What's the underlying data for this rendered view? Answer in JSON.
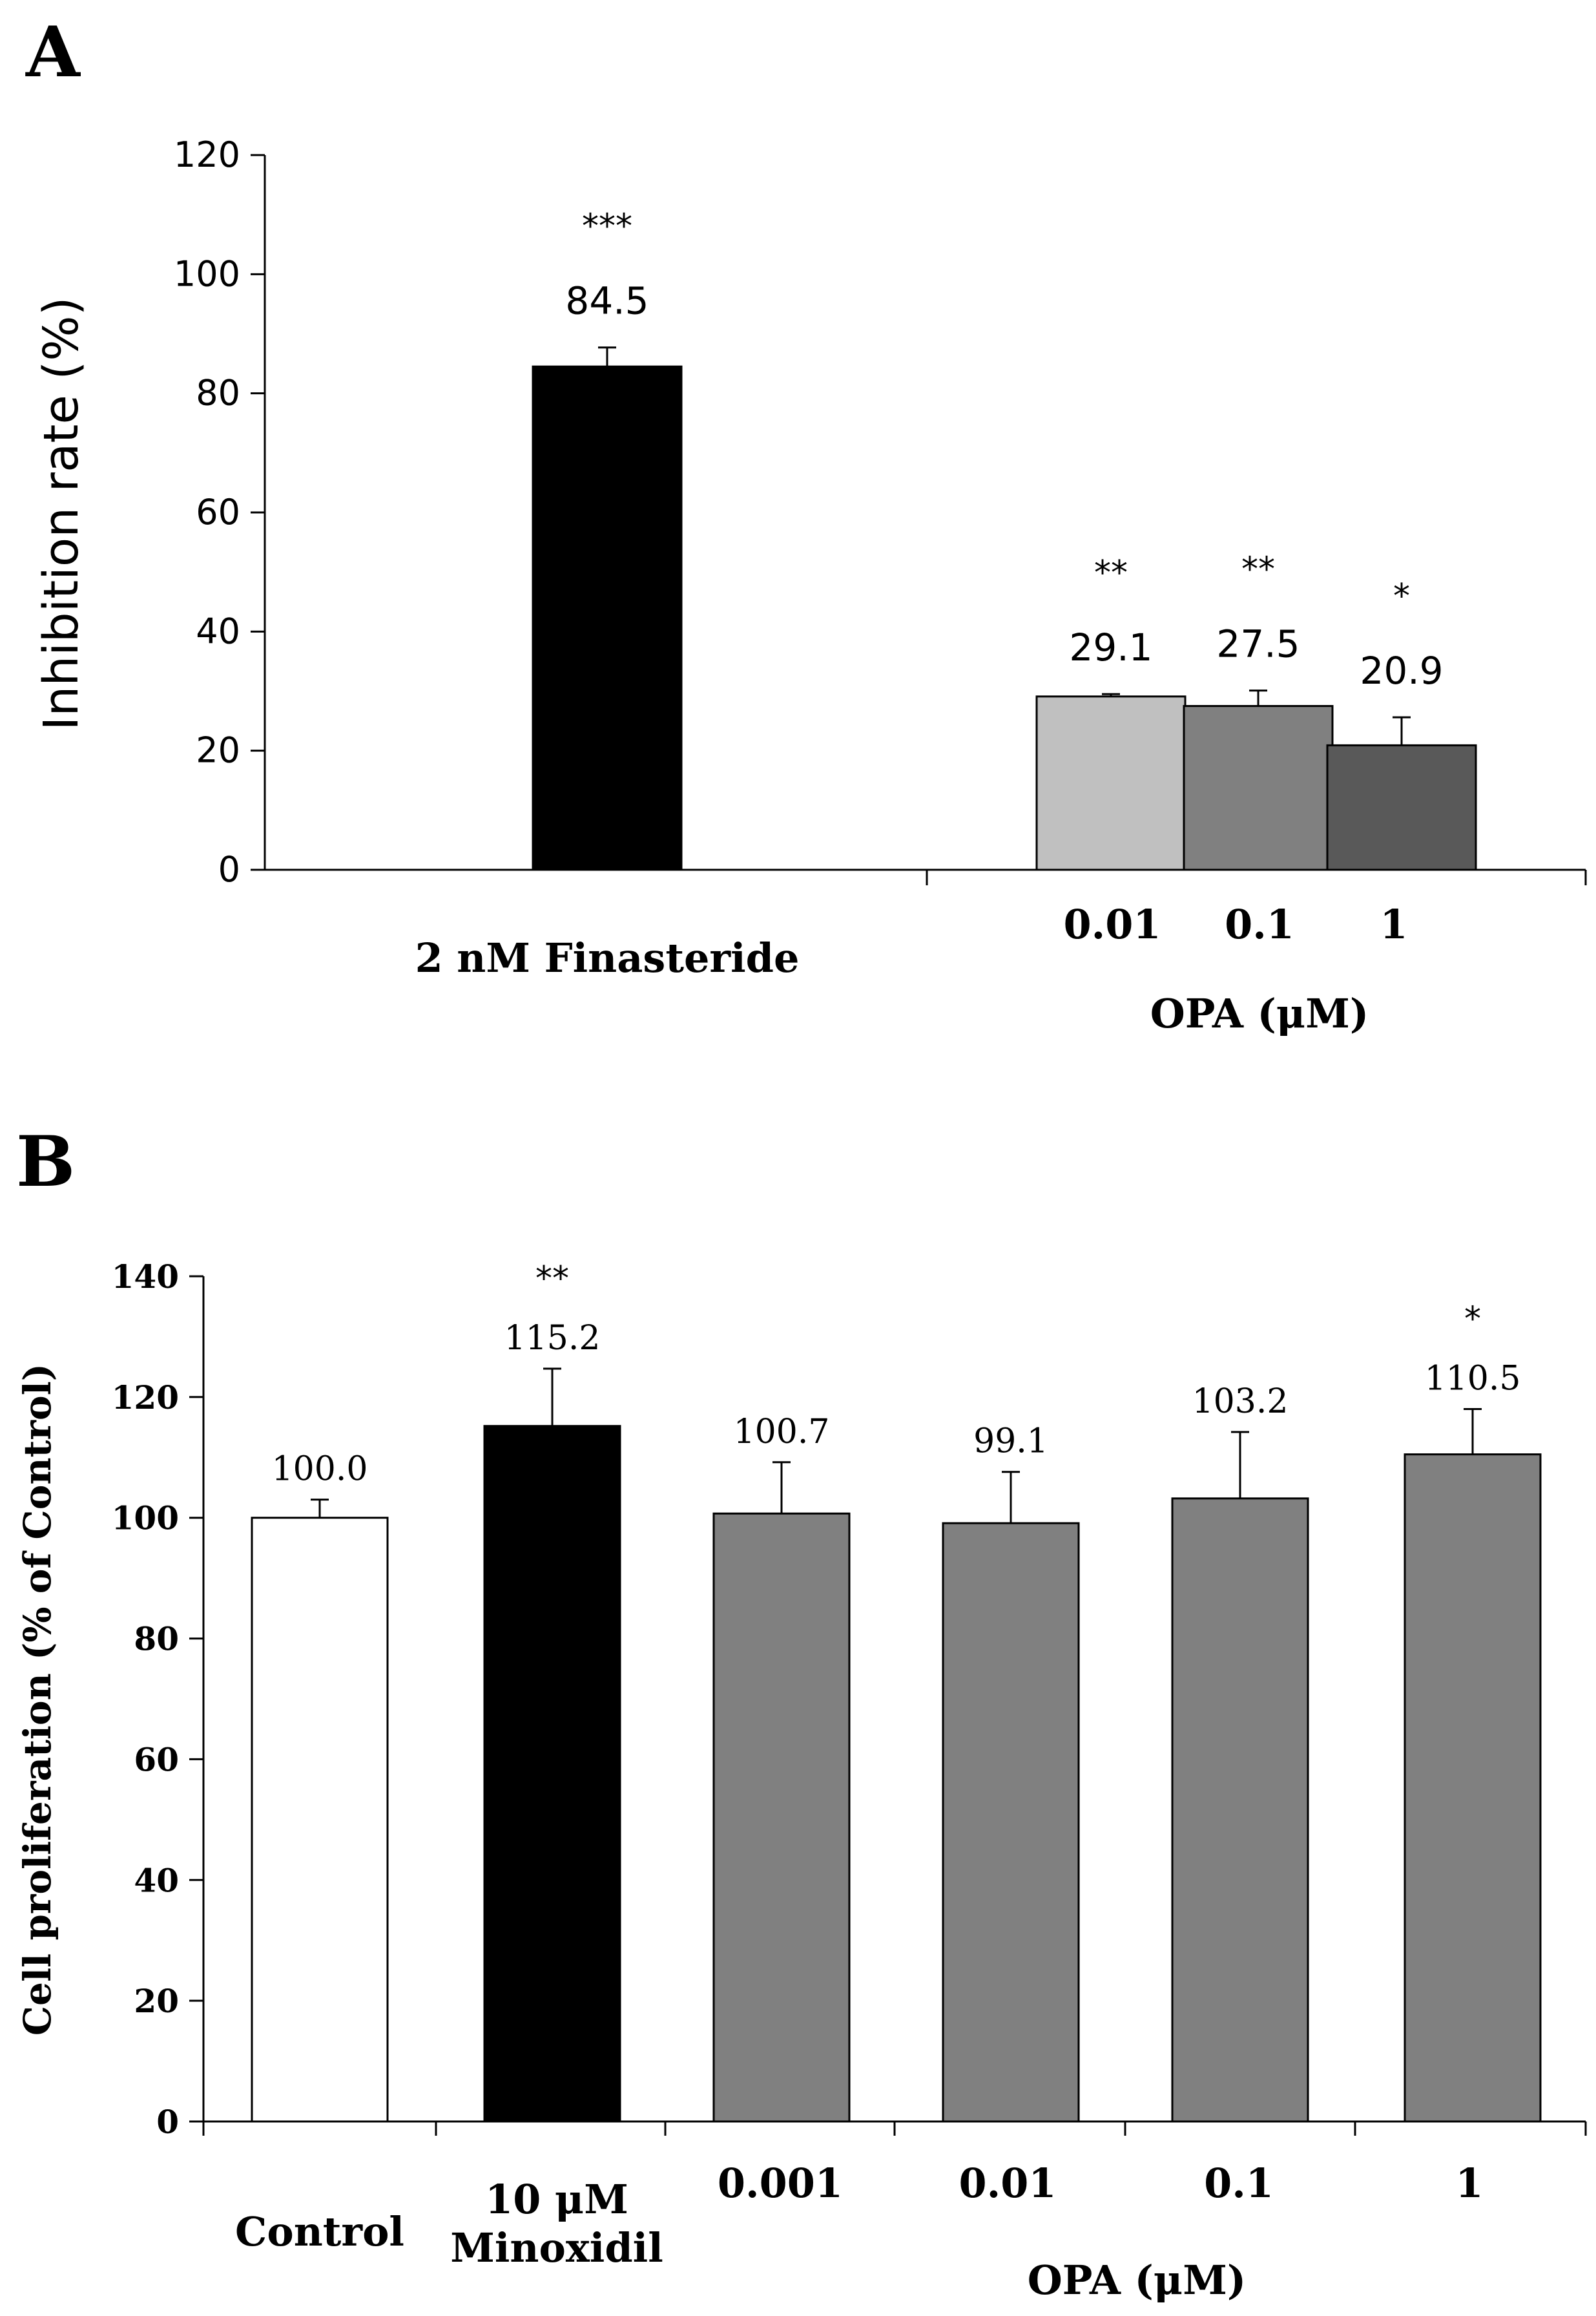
{
  "chart_data": [
    {
      "panel": "A",
      "type": "bar",
      "ylabel": "Inhibition rate  (%)",
      "ylim": [
        0,
        120
      ],
      "yticks": [
        0,
        20,
        40,
        60,
        80,
        100,
        120
      ],
      "categories": [
        "2 nM Finasteride",
        "0.01",
        "0.1",
        "1"
      ],
      "group_label": "OPA (μM)",
      "values": [
        84.5,
        29.1,
        27.5,
        20.9
      ],
      "value_labels": [
        "84.5",
        "29.1",
        "27.5",
        "20.9"
      ],
      "errors": [
        3.2,
        0.4,
        2.6,
        4.7
      ],
      "significance": [
        "***",
        "**",
        "**",
        "*"
      ],
      "colors": [
        "#000000",
        "#c0c0c0",
        "#808080",
        "#595959"
      ]
    },
    {
      "panel": "B",
      "type": "bar",
      "ylabel": "Cell proliferation (% of Control)",
      "ylim": [
        0,
        140
      ],
      "yticks": [
        0,
        20,
        40,
        60,
        80,
        100,
        120,
        140
      ],
      "categories": [
        "Control",
        "10 μM",
        "0.001",
        "0.01",
        "0.1",
        "1"
      ],
      "category_sublabel": [
        "",
        "Minoxidil",
        "",
        "",
        "",
        ""
      ],
      "group_label": "OPA (μM)",
      "values": [
        100.0,
        115.2,
        100.7,
        99.1,
        103.2,
        110.5
      ],
      "value_labels": [
        "100.0",
        "115.2",
        "100.7",
        "99.1",
        "103.2",
        "110.5"
      ],
      "errors": [
        3.0,
        9.5,
        8.5,
        8.5,
        11.0,
        7.5
      ],
      "significance": [
        "",
        "**",
        "",
        "",
        "",
        "*"
      ],
      "colors": [
        "#ffffff",
        "#000000",
        "#808080",
        "#808080",
        "#808080",
        "#808080"
      ]
    }
  ]
}
